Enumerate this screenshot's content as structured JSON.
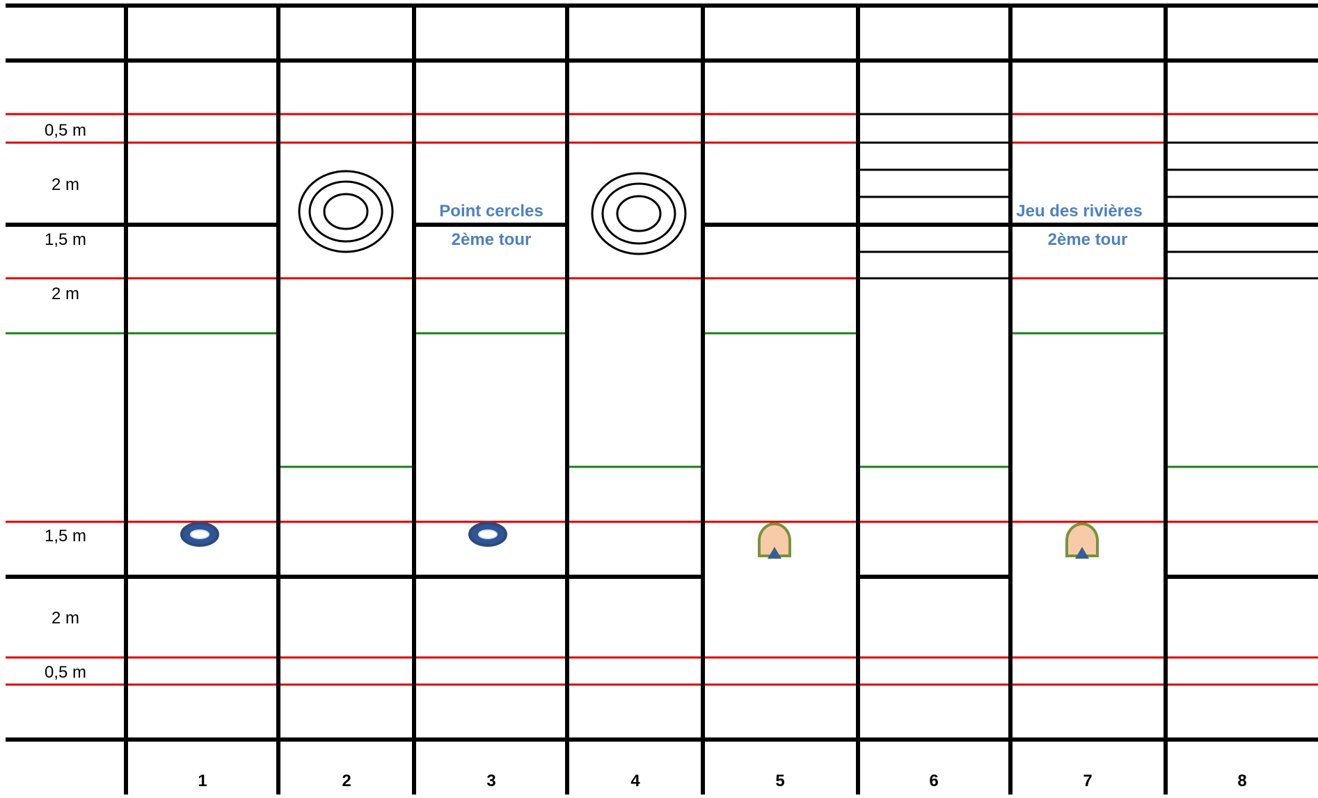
{
  "row_labels": [
    "0,5 m",
    "2 m",
    "1,5 m",
    "2 m",
    "1,5 m",
    "2 m",
    "0,5 m"
  ],
  "lane_numbers": [
    "1",
    "2",
    "3",
    "4",
    "5",
    "6",
    "7",
    "8"
  ],
  "annotations": {
    "lane3": [
      "Point cercles",
      "2ème tour"
    ],
    "lane7": [
      "Jeu des rivières",
      "2ème tour"
    ]
  },
  "colors": {
    "grid": "#000000",
    "red_line": "#e00000",
    "green_line": "#1a7f1a",
    "annotation": "#4f81bd",
    "ring_fill": "#2f5597",
    "ring_stroke": "#2e4a7a",
    "arch_fill": "#f8cba8",
    "arch_stroke": "#77933c",
    "triangle": "#376092"
  },
  "icons": [
    "target-icon",
    "ring-icon",
    "arch-icon"
  ]
}
